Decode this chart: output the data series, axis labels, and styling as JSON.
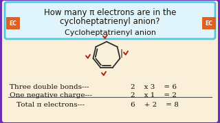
{
  "bg_outer": "#6b2db5",
  "bg_inner": "#faefd8",
  "header_bg": "#dff4fb",
  "header_border": "#4dc8e0",
  "ec_bg": "#e06020",
  "ec_text": "EC",
  "title_line1": "How many π electrons are in the",
  "title_line2": "cycloheptatrienyl anion?",
  "subtitle": "Cycloheptatrienyl anion",
  "row1_label": "Three double bonds---",
  "row1_math": "2   x 3   = 6",
  "row2_label": "One negative charge---",
  "row2_math": "2   x 1   = 2",
  "row3_label": "Total π electrons---",
  "row3_math": "6   + 2   = 8",
  "check_color": "#b02010",
  "ring_color": "#2a2a2a",
  "text_color": "#1a1005",
  "title_fontsize": 8.5,
  "subtitle_fontsize": 8.0,
  "body_fontsize": 7.5
}
